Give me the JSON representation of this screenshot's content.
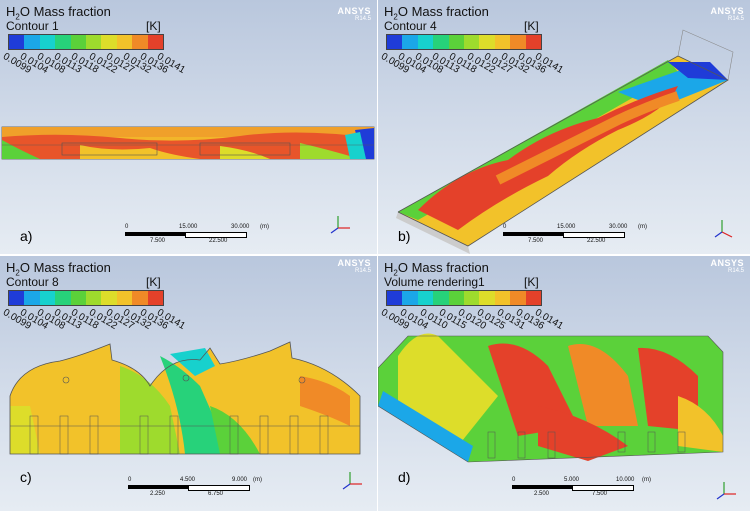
{
  "colorbar": {
    "colors": [
      "#1f3cd8",
      "#1ba7e8",
      "#17d1cd",
      "#27d27a",
      "#5bd13a",
      "#9edb2d",
      "#dddd2a",
      "#f2c22a",
      "#f08a27",
      "#e4412a"
    ]
  },
  "panels": [
    {
      "id": "a",
      "title_prefix": "H",
      "title_sub": "2",
      "title_suffix": "O Mass fraction",
      "subtitle": "Contour 1",
      "unit": "[K]",
      "ticks": [
        "0.0099",
        "0.0104",
        "0.0108",
        "0.0113",
        "0.0118",
        "0.0122",
        "0.0127",
        "0.0132",
        "0.0136",
        "0.0141"
      ],
      "logo": "ANSYS",
      "logo_version": "R14.5",
      "label": "a)",
      "scale_top": [
        "0",
        "15.000",
        "30.000",
        "(m)"
      ],
      "scale_bottom": [
        "7.500",
        "22.500"
      ]
    },
    {
      "id": "b",
      "title_prefix": "H",
      "title_sub": "2",
      "title_suffix": "O Mass fraction",
      "subtitle": "Contour 4",
      "unit": "[K]",
      "ticks": [
        "0.0099",
        "0.0104",
        "0.0108",
        "0.0113",
        "0.0118",
        "0.0122",
        "0.0127",
        "0.0132",
        "0.0136",
        "0.0141"
      ],
      "logo": "ANSYS",
      "logo_version": "R14.5",
      "label": "b)",
      "scale_top": [
        "0",
        "15.000",
        "30.000",
        "(m)"
      ],
      "scale_bottom": [
        "7.500",
        "22.500"
      ]
    },
    {
      "id": "c",
      "title_prefix": "H",
      "title_sub": "2",
      "title_suffix": "O Mass fraction",
      "subtitle": "Contour 8",
      "unit": "[K]",
      "ticks": [
        "0.0099",
        "0.0104",
        "0.0108",
        "0.0113",
        "0.0118",
        "0.0122",
        "0.0127",
        "0.0132",
        "0.0136",
        "0.0141"
      ],
      "logo": "ANSYS",
      "logo_version": "R14.5",
      "label": "c)",
      "scale_top": [
        "0",
        "4.500",
        "9.000",
        "(m)"
      ],
      "scale_bottom": [
        "2.250",
        "6.750"
      ]
    },
    {
      "id": "d",
      "title_prefix": "H",
      "title_sub": "2",
      "title_suffix": "O Mass fraction",
      "subtitle": "Volume rendering1",
      "unit": "[K]",
      "ticks": [
        "0.0099",
        "0.0104",
        "0.0110",
        "0.0115",
        "0.0120",
        "0.0125",
        "0.0131",
        "0.0136",
        "0.0141"
      ],
      "logo": "ANSYS",
      "logo_version": "R14.5",
      "label": "d)",
      "scale_top": [
        "0",
        "5.000",
        "10.000",
        "(m)"
      ],
      "scale_bottom": [
        "2.500",
        "7.500"
      ]
    }
  ]
}
